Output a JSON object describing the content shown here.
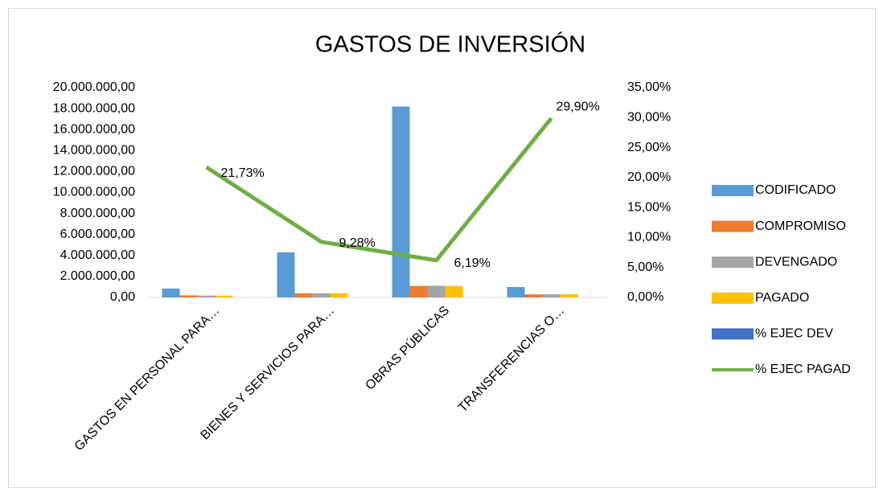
{
  "chart_data": {
    "type": "bar",
    "title": "GASTOS DE INVERSIÓN",
    "categories": [
      "GASTOS EN PERSONAL PARA…",
      "BIENES Y SERVICIOS PARA…",
      "OBRAS PÚBLICAS",
      "TRANSFERENCIAS O…"
    ],
    "series": [
      {
        "name": "CODIFICADO",
        "color": "#5b9bd5",
        "type": "bar",
        "values": [
          850000,
          4300000,
          18200000,
          1000000
        ]
      },
      {
        "name": "COMPROMISO",
        "color": "#ed7d31",
        "type": "bar",
        "values": [
          200000,
          400000,
          1100000,
          300000
        ]
      },
      {
        "name": "DEVENGADO",
        "color": "#a5a5a5",
        "type": "bar",
        "values": [
          180000,
          400000,
          1120000,
          300000
        ]
      },
      {
        "name": "PAGADO",
        "color": "#ffc000",
        "type": "bar",
        "values": [
          180000,
          400000,
          1100000,
          300000
        ]
      },
      {
        "name": "% EJEC DEV",
        "color": "#4472c4",
        "type": "bar",
        "values": [
          null,
          null,
          null,
          null
        ]
      },
      {
        "name": "% EJEC PAGAD",
        "color": "#70ad47",
        "type": "line",
        "axis": "y2",
        "values": [
          21.73,
          9.28,
          6.19,
          29.9
        ],
        "value_labels": [
          "21,73%",
          "9,28%",
          "6,19%",
          "29,90%"
        ]
      }
    ],
    "ylim": [
      0,
      20000000
    ],
    "yticks": [
      {
        "value": 0,
        "label": "0,00"
      },
      {
        "value": 2000000,
        "label": "2.000.000,00"
      },
      {
        "value": 4000000,
        "label": "4.000.000,00"
      },
      {
        "value": 6000000,
        "label": "6.000.000,00"
      },
      {
        "value": 8000000,
        "label": "8.000.000,00"
      },
      {
        "value": 10000000,
        "label": "10.000.000,00"
      },
      {
        "value": 12000000,
        "label": "12.000.000,00"
      },
      {
        "value": 14000000,
        "label": "14.000.000,00"
      },
      {
        "value": 16000000,
        "label": "16.000.000,00"
      },
      {
        "value": 18000000,
        "label": "18.000.000,00"
      },
      {
        "value": 20000000,
        "label": "20.000.000,00"
      }
    ],
    "y2lim": [
      0,
      35
    ],
    "y2ticks": [
      {
        "value": 0,
        "label": "0,00%"
      },
      {
        "value": 5,
        "label": "5,00%"
      },
      {
        "value": 10,
        "label": "10,00%"
      },
      {
        "value": 15,
        "label": "15,00%"
      },
      {
        "value": 20,
        "label": "20,00%"
      },
      {
        "value": 25,
        "label": "25,00%"
      },
      {
        "value": 30,
        "label": "30,00%"
      },
      {
        "value": 35,
        "label": "35,00%"
      }
    ],
    "grid": false,
    "legend": "right"
  }
}
